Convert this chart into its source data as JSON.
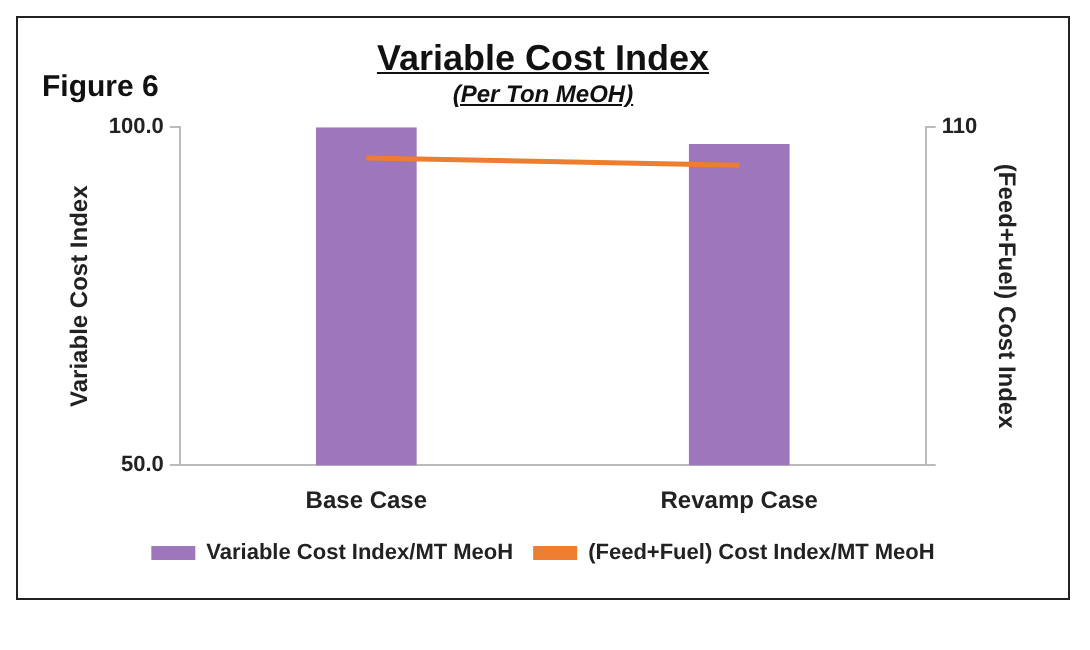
{
  "chart_data": {
    "type": "bar",
    "title": "Variable Cost Index",
    "subtitle": "(Per Ton MeOH)",
    "annotations": [
      "Figure 6"
    ],
    "ylabel": "Variable Cost Index",
    "y2label": "(Feed+Fuel) Cost Index",
    "categories": [
      "Base Case",
      "Revamp Case"
    ],
    "series": [
      {
        "name": "Variable Cost Index/MT MeoH",
        "color": "#9e76bc",
        "values": [
          100,
          97.5
        ]
      },
      {
        "name": "(Feed+Fuel) Cost Index/MT MeoH",
        "type": "line",
        "axis": "y2",
        "color": "#ed7d31",
        "values": [
          100,
          97.6
        ]
      }
    ],
    "ylim": [
      50,
      100
    ],
    "yticks": [
      {
        "value": 50,
        "label": "50.0"
      },
      {
        "value": 100,
        "label": "100.0"
      }
    ],
    "y2lim": [
      0,
      110
    ],
    "y2ticks": [
      0,
      110
    ],
    "grid": false,
    "legend": "bottom",
    "marker": "none"
  }
}
